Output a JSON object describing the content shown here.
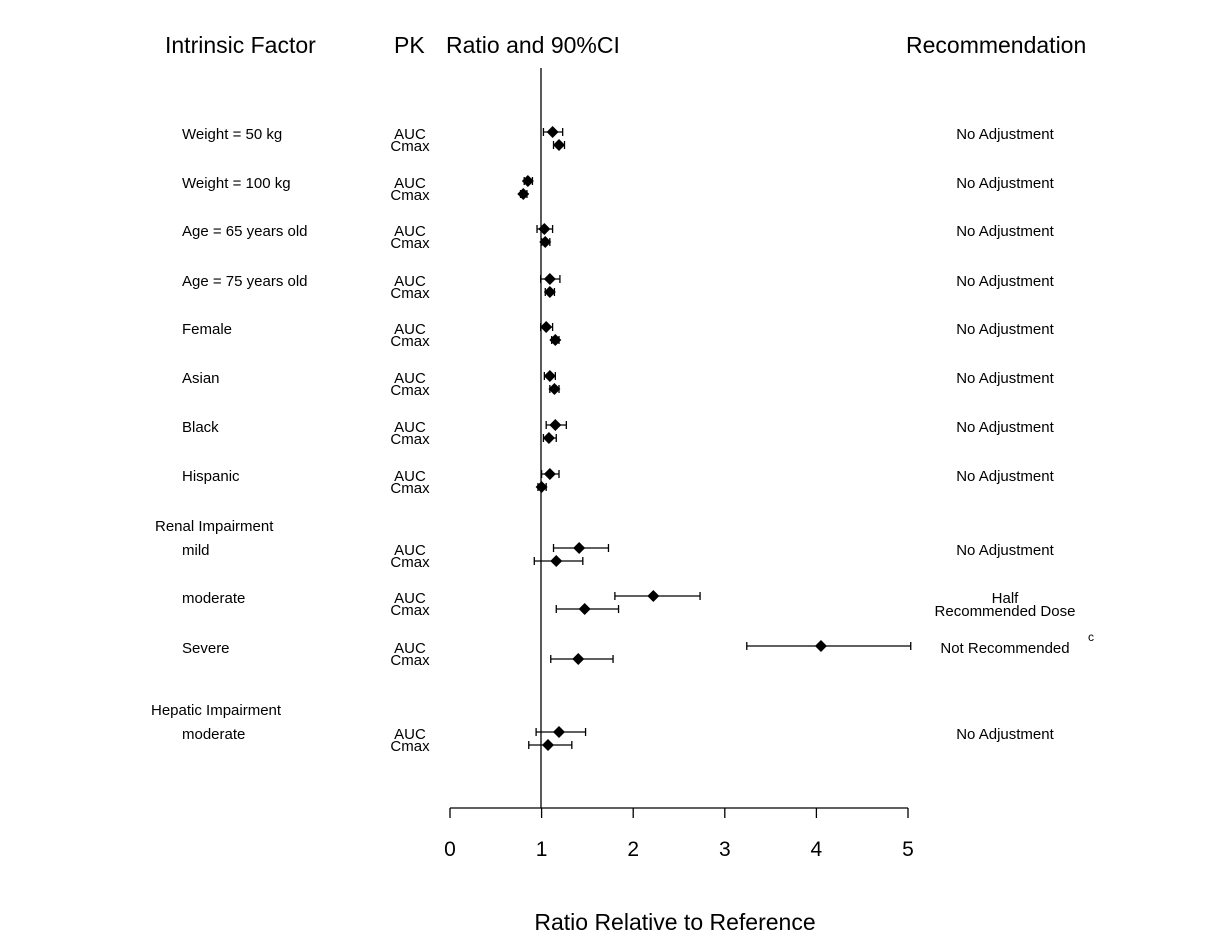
{
  "headers": {
    "factor": "Intrinsic Factor",
    "pk": "PK",
    "ratio": "Ratio and 90%CI",
    "recommendation": "Recommendation"
  },
  "chart_data": {
    "type": "scatter",
    "xlabel": "Ratio Relative to Reference",
    "xlim": [
      0,
      5
    ],
    "xticks": [
      0,
      1,
      2,
      3,
      4,
      5
    ],
    "reference_line": 1,
    "groups": [
      {
        "name": "Renal Impairment"
      },
      {
        "name": "Hepatic Impairment"
      }
    ],
    "rows": [
      {
        "factor": "Weight = 50 kg",
        "recommendation": "No Adjustment",
        "auc": {
          "label": "AUC",
          "ratio": 1.12,
          "lower": 1.02,
          "upper": 1.23
        },
        "cmax": {
          "label": "Cmax",
          "ratio": 1.19,
          "lower": 1.13,
          "upper": 1.25
        }
      },
      {
        "factor": "Weight = 100 kg",
        "recommendation": "No Adjustment",
        "auc": {
          "label": "AUC",
          "ratio": 0.85,
          "lower": 0.81,
          "upper": 0.9
        },
        "cmax": {
          "label": "Cmax",
          "ratio": 0.8,
          "lower": 0.77,
          "upper": 0.84
        }
      },
      {
        "factor": "Age = 65 years old",
        "recommendation": "No Adjustment",
        "auc": {
          "label": "AUC",
          "ratio": 1.03,
          "lower": 0.95,
          "upper": 1.12
        },
        "cmax": {
          "label": "Cmax",
          "ratio": 1.04,
          "lower": 1.0,
          "upper": 1.09
        }
      },
      {
        "factor": "Age = 75 years old",
        "recommendation": "No Adjustment",
        "auc": {
          "label": "AUC",
          "ratio": 1.09,
          "lower": 0.99,
          "upper": 1.2
        },
        "cmax": {
          "label": "Cmax",
          "ratio": 1.09,
          "lower": 1.04,
          "upper": 1.14
        }
      },
      {
        "factor": "Female",
        "recommendation": "No Adjustment",
        "auc": {
          "label": "AUC",
          "ratio": 1.05,
          "lower": 0.99,
          "upper": 1.12
        },
        "cmax": {
          "label": "Cmax",
          "ratio": 1.15,
          "lower": 1.11,
          "upper": 1.19
        }
      },
      {
        "factor": "Asian",
        "recommendation": "No Adjustment",
        "auc": {
          "label": "AUC",
          "ratio": 1.09,
          "lower": 1.03,
          "upper": 1.15
        },
        "cmax": {
          "label": "Cmax",
          "ratio": 1.14,
          "lower": 1.09,
          "upper": 1.19
        }
      },
      {
        "factor": "Black",
        "recommendation": "No Adjustment",
        "auc": {
          "label": "AUC",
          "ratio": 1.15,
          "lower": 1.05,
          "upper": 1.27
        },
        "cmax": {
          "label": "Cmax",
          "ratio": 1.08,
          "lower": 1.02,
          "upper": 1.16
        }
      },
      {
        "factor": "Hispanic",
        "recommendation": "No Adjustment",
        "auc": {
          "label": "AUC",
          "ratio": 1.09,
          "lower": 1.0,
          "upper": 1.19
        },
        "cmax": {
          "label": "Cmax",
          "ratio": 1.0,
          "lower": 0.96,
          "upper": 1.05
        }
      },
      {
        "factor": "mild",
        "group": "Renal Impairment",
        "recommendation": "No Adjustment",
        "auc": {
          "label": "AUC",
          "ratio": 1.41,
          "lower": 1.13,
          "upper": 1.73
        },
        "cmax": {
          "label": "Cmax",
          "ratio": 1.16,
          "lower": 0.92,
          "upper": 1.45
        }
      },
      {
        "factor": "moderate",
        "group": "Renal Impairment",
        "recommendation": "Half Recommended Dose",
        "recommendation_lines": [
          "Half",
          "Recommended Dose"
        ],
        "auc": {
          "label": "AUC",
          "ratio": 2.22,
          "lower": 1.8,
          "upper": 2.73
        },
        "cmax": {
          "label": "Cmax",
          "ratio": 1.47,
          "lower": 1.16,
          "upper": 1.84
        }
      },
      {
        "factor": "Severe",
        "group": "Renal Impairment",
        "recommendation": "Not Recommended",
        "footnote": "c",
        "auc": {
          "label": "AUC",
          "ratio": 4.05,
          "lower": 3.24,
          "upper": 5.03
        },
        "cmax": {
          "label": "Cmax",
          "ratio": 1.4,
          "lower": 1.1,
          "upper": 1.78
        }
      },
      {
        "factor": "moderate",
        "group": "Hepatic Impairment",
        "recommendation": "No Adjustment",
        "auc": {
          "label": "AUC",
          "ratio": 1.19,
          "lower": 0.94,
          "upper": 1.48
        },
        "cmax": {
          "label": "Cmax",
          "ratio": 1.07,
          "lower": 0.86,
          "upper": 1.33
        }
      }
    ]
  }
}
